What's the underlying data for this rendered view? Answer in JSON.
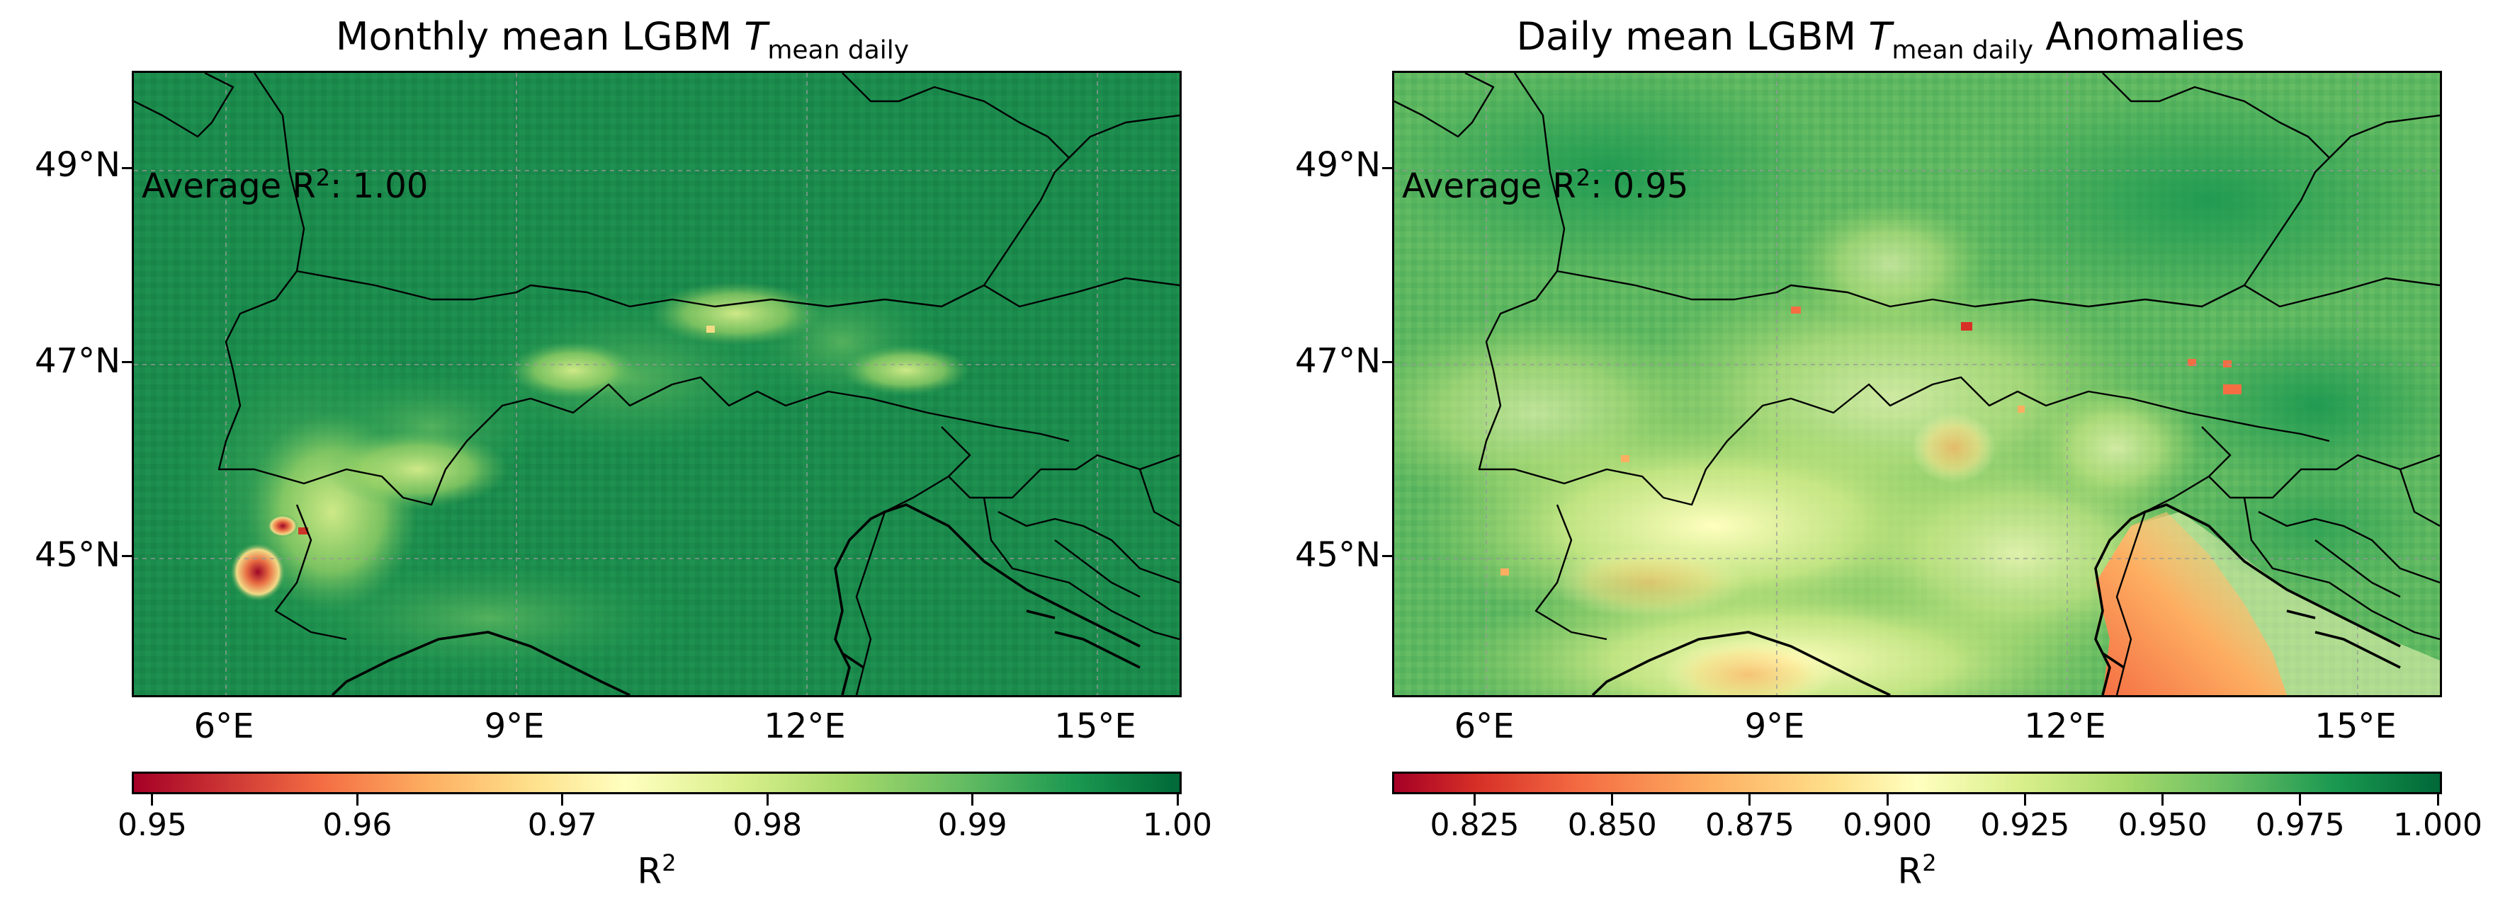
{
  "panels": [
    {
      "title_prefix": "Monthly mean LGBM ",
      "title_symbol": "T",
      "title_subscript": "mean daily",
      "title_suffix": "",
      "annotation_label": "Average R",
      "annotation_sup": "2",
      "annotation_value": ": 1.00",
      "lat_ticks": [
        "49°N",
        "47°N",
        "45°N"
      ],
      "lon_ticks": [
        "6°E",
        "9°E",
        "12°E",
        "15°E"
      ],
      "colorbar": {
        "ticks": [
          "0.95",
          "0.96",
          "0.97",
          "0.98",
          "0.99",
          "1.00"
        ],
        "min": 0.949,
        "max": 1.0,
        "label": "R",
        "label_sup": "2"
      }
    },
    {
      "title_prefix": "Daily mean LGBM ",
      "title_symbol": "T",
      "title_subscript": "mean daily",
      "title_suffix": " Anomalies",
      "annotation_label": "Average R",
      "annotation_sup": "2",
      "annotation_value": ": 0.95",
      "lat_ticks": [
        "49°N",
        "47°N",
        "45°N"
      ],
      "lon_ticks": [
        "6°E",
        "9°E",
        "12°E",
        "15°E"
      ],
      "colorbar": {
        "ticks": [
          "0.825",
          "0.850",
          "0.875",
          "0.900",
          "0.925",
          "0.950",
          "0.975",
          "1.000"
        ],
        "min": 0.81,
        "max": 1.0,
        "label": "R",
        "label_sup": "2"
      }
    }
  ],
  "map_extent": {
    "lon_min": 5.0,
    "lon_max": 15.8,
    "lat_min": 43.6,
    "lat_max": 50.0
  },
  "colormap": "RdYlGn",
  "colormap_stops": [
    "#a50026",
    "#f46d43",
    "#fdae61",
    "#fee08b",
    "#ffffbf",
    "#d9ef8b",
    "#a6d96a",
    "#66bd63",
    "#1a9850",
    "#006837"
  ]
}
